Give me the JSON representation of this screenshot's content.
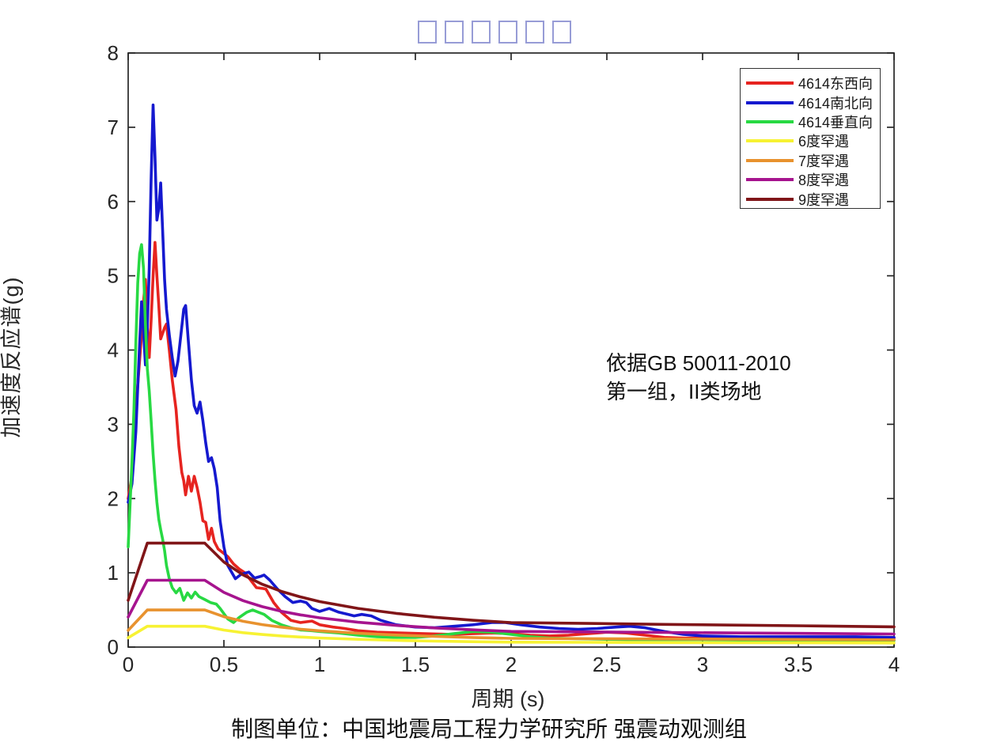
{
  "figure": {
    "title_missing_glyphs": "□□□□□□",
    "title_glyph_color": "#979cd6",
    "annotation": {
      "line1": "依据GB 50011-2010",
      "line2": "第一组，II类场地"
    },
    "caption": "制图单位：中国地震局工程力学研究所 强震动观测组"
  },
  "chart_data": {
    "type": "line",
    "title": "□□□□□□",
    "xlabel": "周期 (s)",
    "ylabel": "加速度反应谱(g)",
    "xlim": [
      0,
      4
    ],
    "ylim": [
      0,
      8
    ],
    "xticks": [
      0,
      0.5,
      1,
      1.5,
      2,
      2.5,
      3,
      3.5,
      4
    ],
    "xtick_labels": [
      "0",
      "0.5",
      "1",
      "1.5",
      "2",
      "2.5",
      "3",
      "3.5",
      "4"
    ],
    "yticks": [
      0,
      1,
      2,
      3,
      4,
      5,
      6,
      7,
      8
    ],
    "ytick_labels": [
      "0",
      "1",
      "2",
      "3",
      "4",
      "5",
      "6",
      "7",
      "8"
    ],
    "grid": false,
    "legend_position": "top-right",
    "axis_color": "#262626",
    "annotation": [
      "依据GB 50011-2010",
      "第一组，II类场地"
    ],
    "caption": "制图单位：中国地震局工程力学研究所 强震动观测组",
    "series": [
      {
        "name": "4614东西向",
        "color": "#e62420",
        "points": [
          [
            0,
            2.0
          ],
          [
            0.02,
            2.3
          ],
          [
            0.04,
            3.2
          ],
          [
            0.055,
            3.7
          ],
          [
            0.07,
            4.2
          ],
          [
            0.08,
            4.65
          ],
          [
            0.09,
            4.95
          ],
          [
            0.1,
            4.3
          ],
          [
            0.11,
            3.9
          ],
          [
            0.12,
            4.4
          ],
          [
            0.13,
            5.0
          ],
          [
            0.14,
            5.45
          ],
          [
            0.15,
            5.0
          ],
          [
            0.16,
            4.6
          ],
          [
            0.17,
            4.15
          ],
          [
            0.19,
            4.3
          ],
          [
            0.2,
            4.35
          ],
          [
            0.215,
            4.0
          ],
          [
            0.23,
            3.6
          ],
          [
            0.25,
            3.2
          ],
          [
            0.265,
            2.7
          ],
          [
            0.28,
            2.35
          ],
          [
            0.29,
            2.24
          ],
          [
            0.3,
            2.05
          ],
          [
            0.315,
            2.3
          ],
          [
            0.33,
            2.1
          ],
          [
            0.345,
            2.3
          ],
          [
            0.36,
            2.15
          ],
          [
            0.375,
            1.95
          ],
          [
            0.39,
            1.7
          ],
          [
            0.405,
            1.68
          ],
          [
            0.42,
            1.45
          ],
          [
            0.435,
            1.6
          ],
          [
            0.45,
            1.42
          ],
          [
            0.47,
            1.32
          ],
          [
            0.5,
            1.26
          ],
          [
            0.52,
            1.22
          ],
          [
            0.55,
            1.12
          ],
          [
            0.58,
            1.05
          ],
          [
            0.61,
            1.0
          ],
          [
            0.64,
            0.9
          ],
          [
            0.67,
            0.8
          ],
          [
            0.7,
            0.79
          ],
          [
            0.72,
            0.78
          ],
          [
            0.76,
            0.6
          ],
          [
            0.8,
            0.47
          ],
          [
            0.85,
            0.36
          ],
          [
            0.9,
            0.33
          ],
          [
            0.96,
            0.35
          ],
          [
            1.0,
            0.3
          ],
          [
            1.07,
            0.27
          ],
          [
            1.13,
            0.25
          ],
          [
            1.2,
            0.22
          ],
          [
            1.3,
            0.2
          ],
          [
            1.43,
            0.19
          ],
          [
            1.55,
            0.18
          ],
          [
            1.7,
            0.17
          ],
          [
            1.8,
            0.18
          ],
          [
            1.9,
            0.19
          ],
          [
            2.0,
            0.18
          ],
          [
            2.1,
            0.16
          ],
          [
            2.2,
            0.15
          ],
          [
            2.3,
            0.16
          ],
          [
            2.4,
            0.18
          ],
          [
            2.5,
            0.2
          ],
          [
            2.6,
            0.19
          ],
          [
            2.7,
            0.16
          ],
          [
            2.8,
            0.13
          ],
          [
            2.9,
            0.12
          ],
          [
            3.0,
            0.12
          ],
          [
            3.2,
            0.11
          ],
          [
            3.4,
            0.11
          ],
          [
            3.6,
            0.12
          ],
          [
            3.8,
            0.12
          ],
          [
            4.0,
            0.12
          ]
        ]
      },
      {
        "name": "4614南北向",
        "color": "#1519cf",
        "points": [
          [
            0,
            1.95
          ],
          [
            0.02,
            2.2
          ],
          [
            0.04,
            2.9
          ],
          [
            0.055,
            3.8
          ],
          [
            0.07,
            4.65
          ],
          [
            0.08,
            4.25
          ],
          [
            0.09,
            3.8
          ],
          [
            0.1,
            4.3
          ],
          [
            0.11,
            5.1
          ],
          [
            0.12,
            6.3
          ],
          [
            0.13,
            7.3
          ],
          [
            0.14,
            6.6
          ],
          [
            0.15,
            5.75
          ],
          [
            0.16,
            5.9
          ],
          [
            0.17,
            6.25
          ],
          [
            0.18,
            5.6
          ],
          [
            0.19,
            4.95
          ],
          [
            0.2,
            4.55
          ],
          [
            0.215,
            4.2
          ],
          [
            0.23,
            3.9
          ],
          [
            0.245,
            3.65
          ],
          [
            0.26,
            3.85
          ],
          [
            0.275,
            4.2
          ],
          [
            0.29,
            4.55
          ],
          [
            0.3,
            4.6
          ],
          [
            0.315,
            4.1
          ],
          [
            0.33,
            3.6
          ],
          [
            0.345,
            3.25
          ],
          [
            0.36,
            3.15
          ],
          [
            0.375,
            3.3
          ],
          [
            0.39,
            3.05
          ],
          [
            0.405,
            2.75
          ],
          [
            0.42,
            2.5
          ],
          [
            0.435,
            2.55
          ],
          [
            0.45,
            2.4
          ],
          [
            0.465,
            2.15
          ],
          [
            0.48,
            1.7
          ],
          [
            0.5,
            1.35
          ],
          [
            0.52,
            1.1
          ],
          [
            0.56,
            0.92
          ],
          [
            0.59,
            0.98
          ],
          [
            0.63,
            1.01
          ],
          [
            0.66,
            0.93
          ],
          [
            0.69,
            0.95
          ],
          [
            0.71,
            0.97
          ],
          [
            0.74,
            0.9
          ],
          [
            0.78,
            0.78
          ],
          [
            0.82,
            0.68
          ],
          [
            0.86,
            0.6
          ],
          [
            0.9,
            0.62
          ],
          [
            0.93,
            0.6
          ],
          [
            0.96,
            0.52
          ],
          [
            1.0,
            0.48
          ],
          [
            1.05,
            0.52
          ],
          [
            1.1,
            0.47
          ],
          [
            1.15,
            0.44
          ],
          [
            1.18,
            0.42
          ],
          [
            1.22,
            0.44
          ],
          [
            1.27,
            0.42
          ],
          [
            1.32,
            0.36
          ],
          [
            1.4,
            0.3
          ],
          [
            1.5,
            0.27
          ],
          [
            1.6,
            0.26
          ],
          [
            1.7,
            0.28
          ],
          [
            1.8,
            0.3
          ],
          [
            1.9,
            0.33
          ],
          [
            1.97,
            0.33
          ],
          [
            2.05,
            0.3
          ],
          [
            2.15,
            0.27
          ],
          [
            2.25,
            0.25
          ],
          [
            2.35,
            0.24
          ],
          [
            2.45,
            0.25
          ],
          [
            2.55,
            0.27
          ],
          [
            2.62,
            0.28
          ],
          [
            2.7,
            0.26
          ],
          [
            2.8,
            0.21
          ],
          [
            2.9,
            0.17
          ],
          [
            3.0,
            0.15
          ],
          [
            3.2,
            0.14
          ],
          [
            3.4,
            0.14
          ],
          [
            3.6,
            0.14
          ],
          [
            3.8,
            0.14
          ],
          [
            4.0,
            0.13
          ]
        ]
      },
      {
        "name": "4614垂直向",
        "color": "#28d943",
        "points": [
          [
            0,
            1.35
          ],
          [
            0.02,
            2.5
          ],
          [
            0.03,
            3.2
          ],
          [
            0.04,
            4.1
          ],
          [
            0.05,
            4.9
          ],
          [
            0.06,
            5.3
          ],
          [
            0.07,
            5.42
          ],
          [
            0.08,
            5.1
          ],
          [
            0.09,
            4.35
          ],
          [
            0.1,
            3.75
          ],
          [
            0.11,
            3.45
          ],
          [
            0.12,
            3.05
          ],
          [
            0.13,
            2.6
          ],
          [
            0.14,
            2.25
          ],
          [
            0.15,
            1.95
          ],
          [
            0.16,
            1.72
          ],
          [
            0.17,
            1.58
          ],
          [
            0.18,
            1.45
          ],
          [
            0.19,
            1.3
          ],
          [
            0.2,
            1.1
          ],
          [
            0.215,
            0.92
          ],
          [
            0.23,
            0.8
          ],
          [
            0.25,
            0.73
          ],
          [
            0.27,
            0.79
          ],
          [
            0.29,
            0.63
          ],
          [
            0.31,
            0.73
          ],
          [
            0.33,
            0.66
          ],
          [
            0.35,
            0.74
          ],
          [
            0.37,
            0.68
          ],
          [
            0.4,
            0.64
          ],
          [
            0.43,
            0.6
          ],
          [
            0.46,
            0.58
          ],
          [
            0.48,
            0.52
          ],
          [
            0.52,
            0.38
          ],
          [
            0.55,
            0.33
          ],
          [
            0.58,
            0.4
          ],
          [
            0.62,
            0.47
          ],
          [
            0.65,
            0.5
          ],
          [
            0.68,
            0.47
          ],
          [
            0.71,
            0.44
          ],
          [
            0.75,
            0.36
          ],
          [
            0.8,
            0.3
          ],
          [
            0.85,
            0.26
          ],
          [
            0.9,
            0.23
          ],
          [
            0.96,
            0.22
          ],
          [
            1.0,
            0.21
          ],
          [
            1.1,
            0.19
          ],
          [
            1.2,
            0.16
          ],
          [
            1.3,
            0.14
          ],
          [
            1.4,
            0.13
          ],
          [
            1.5,
            0.13
          ],
          [
            1.6,
            0.15
          ],
          [
            1.7,
            0.18
          ],
          [
            1.8,
            0.21
          ],
          [
            1.9,
            0.2
          ],
          [
            2.0,
            0.17
          ],
          [
            2.1,
            0.14
          ],
          [
            2.2,
            0.12
          ],
          [
            2.4,
            0.11
          ],
          [
            2.6,
            0.1
          ],
          [
            2.8,
            0.1
          ],
          [
            3.0,
            0.1
          ],
          [
            3.3,
            0.09
          ],
          [
            3.6,
            0.09
          ],
          [
            4.0,
            0.09
          ]
        ]
      },
      {
        "name": "6度罕遇",
        "color": "#f7f233",
        "points": [
          [
            0,
            0.126
          ],
          [
            0.1,
            0.28
          ],
          [
            0.4,
            0.28
          ],
          [
            0.5,
            0.229
          ],
          [
            0.6,
            0.194
          ],
          [
            0.7,
            0.169
          ],
          [
            0.8,
            0.15
          ],
          [
            0.9,
            0.135
          ],
          [
            1.0,
            0.123
          ],
          [
            1.2,
            0.104
          ],
          [
            1.4,
            0.091
          ],
          [
            1.6,
            0.08
          ],
          [
            1.8,
            0.072
          ],
          [
            2.0,
            0.066
          ],
          [
            2.4,
            0.064
          ],
          [
            2.8,
            0.061
          ],
          [
            3.2,
            0.059
          ],
          [
            3.6,
            0.057
          ],
          [
            4.0,
            0.055
          ]
        ]
      },
      {
        "name": "7度罕遇",
        "color": "#e8922e",
        "points": [
          [
            0,
            0.225
          ],
          [
            0.1,
            0.5
          ],
          [
            0.4,
            0.5
          ],
          [
            0.5,
            0.409
          ],
          [
            0.6,
            0.347
          ],
          [
            0.7,
            0.302
          ],
          [
            0.8,
            0.268
          ],
          [
            0.9,
            0.241
          ],
          [
            1.0,
            0.219
          ],
          [
            1.2,
            0.186
          ],
          [
            1.4,
            0.162
          ],
          [
            1.6,
            0.144
          ],
          [
            1.8,
            0.129
          ],
          [
            2.0,
            0.117
          ],
          [
            2.4,
            0.113
          ],
          [
            2.8,
            0.109
          ],
          [
            3.2,
            0.105
          ],
          [
            3.6,
            0.101
          ],
          [
            4.0,
            0.098
          ]
        ]
      },
      {
        "name": "8度罕遇",
        "color": "#a6148e",
        "points": [
          [
            0,
            0.405
          ],
          [
            0.1,
            0.9
          ],
          [
            0.4,
            0.9
          ],
          [
            0.5,
            0.736
          ],
          [
            0.6,
            0.625
          ],
          [
            0.7,
            0.544
          ],
          [
            0.8,
            0.482
          ],
          [
            0.9,
            0.434
          ],
          [
            1.0,
            0.394
          ],
          [
            1.2,
            0.335
          ],
          [
            1.4,
            0.292
          ],
          [
            1.6,
            0.258
          ],
          [
            1.8,
            0.232
          ],
          [
            2.0,
            0.211
          ],
          [
            2.4,
            0.204
          ],
          [
            2.8,
            0.197
          ],
          [
            3.2,
            0.19
          ],
          [
            3.6,
            0.183
          ],
          [
            4.0,
            0.176
          ]
        ]
      },
      {
        "name": "9度罕遇",
        "color": "#801518",
        "points": [
          [
            0,
            0.63
          ],
          [
            0.1,
            1.4
          ],
          [
            0.4,
            1.4
          ],
          [
            0.5,
            1.145
          ],
          [
            0.6,
            0.972
          ],
          [
            0.7,
            0.846
          ],
          [
            0.8,
            0.75
          ],
          [
            0.9,
            0.675
          ],
          [
            1.0,
            0.613
          ],
          [
            1.2,
            0.521
          ],
          [
            1.4,
            0.454
          ],
          [
            1.6,
            0.402
          ],
          [
            1.8,
            0.361
          ],
          [
            2.0,
            0.329
          ],
          [
            2.4,
            0.318
          ],
          [
            2.8,
            0.306
          ],
          [
            3.2,
            0.295
          ],
          [
            3.6,
            0.284
          ],
          [
            4.0,
            0.273
          ]
        ]
      }
    ]
  }
}
